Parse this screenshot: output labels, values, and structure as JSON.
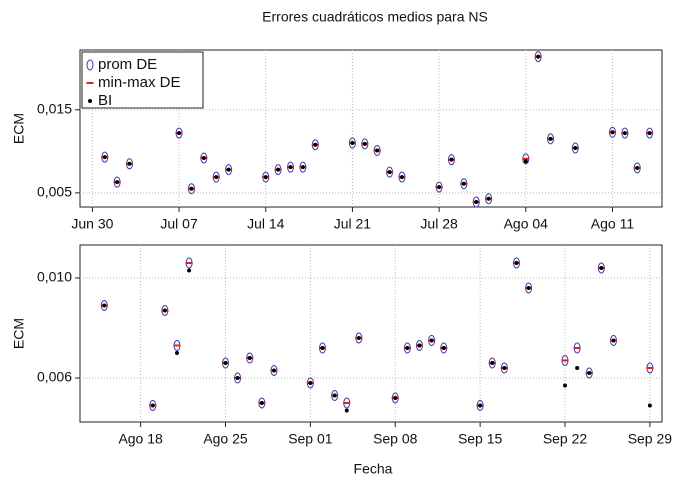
{
  "chart_data": [
    {
      "type": "scatter",
      "title": "Errores cuadráticos medios para NS",
      "y_label": "ECM",
      "x": [
        "07-01",
        "07-02",
        "07-03",
        "07-07",
        "07-08",
        "07-09",
        "07-10",
        "07-11",
        "07-14",
        "07-15",
        "07-16",
        "07-17",
        "07-18",
        "07-21",
        "07-22",
        "07-23",
        "07-24",
        "07-25",
        "07-28",
        "07-29",
        "07-30",
        "07-31",
        "08-01",
        "08-04",
        "08-05",
        "08-06",
        "08-08",
        "08-11",
        "08-12",
        "08-13",
        "08-14"
      ],
      "series": [
        {
          "name": "prom DE",
          "color": "#3b3bb0",
          "marker": "diamond",
          "values": [
            0.0093,
            0.0063,
            0.0085,
            0.0122,
            0.0055,
            0.0092,
            0.0069,
            0.0078,
            0.0069,
            0.0078,
            0.0081,
            0.0081,
            0.0108,
            0.011,
            0.0109,
            0.0101,
            0.0075,
            0.0069,
            0.0057,
            0.009,
            0.0061,
            0.0039,
            0.0043,
            0.0091,
            0.0214,
            0.0115,
            0.0104,
            0.0123,
            0.0122,
            0.008,
            0.0122
          ]
        },
        {
          "name": "min-max DE",
          "color": "#e02020",
          "marker": "dash",
          "values": [
            0.0093,
            0.0063,
            0.0085,
            0.0122,
            0.0055,
            0.0092,
            0.0069,
            0.0078,
            0.0069,
            0.0078,
            0.0081,
            0.0081,
            0.0108,
            0.011,
            0.0109,
            0.0101,
            0.0075,
            0.0069,
            0.0057,
            0.009,
            0.0061,
            0.0039,
            0.0043,
            0.0091,
            0.0214,
            0.0115,
            0.0104,
            0.0123,
            0.0122,
            0.008,
            0.0122
          ]
        },
        {
          "name": "BI",
          "color": "#000000",
          "marker": "dot",
          "values": [
            0.0093,
            0.0063,
            0.0085,
            0.0122,
            0.0055,
            0.0092,
            0.0069,
            0.0078,
            0.0069,
            0.0078,
            0.0081,
            0.0081,
            0.0108,
            0.011,
            0.0109,
            0.0101,
            0.0075,
            0.0069,
            0.0057,
            0.009,
            0.0061,
            0.0039,
            0.0043,
            0.0088,
            0.0214,
            0.0115,
            0.0104,
            0.0123,
            0.0122,
            0.008,
            0.0122
          ]
        }
      ],
      "xlim": [
        "06-29",
        "08-15"
      ],
      "xticks": [
        {
          "value": "06-30",
          "label": "Jun 30"
        },
        {
          "value": "07-07",
          "label": "Jul 07"
        },
        {
          "value": "07-14",
          "label": "Jul 14"
        },
        {
          "value": "07-21",
          "label": "Jul 21"
        },
        {
          "value": "07-28",
          "label": "Jul 28"
        },
        {
          "value": "08-04",
          "label": "Ago 04"
        },
        {
          "value": "08-11",
          "label": "Ago 11"
        }
      ],
      "ylim": [
        0.0033,
        0.0222
      ],
      "yticks": [
        {
          "value": 0.005,
          "label": "0,005"
        },
        {
          "value": 0.015,
          "label": "0,015"
        }
      ],
      "grid": true,
      "legend": "top-left"
    },
    {
      "type": "scatter",
      "y_label": "ECM",
      "x_label": "Fecha",
      "x": [
        "08-15",
        "08-19",
        "08-20",
        "08-21",
        "08-22",
        "08-25",
        "08-26",
        "08-27",
        "08-28",
        "08-29",
        "09-01",
        "09-02",
        "09-03",
        "09-04",
        "09-05",
        "09-08",
        "09-09",
        "09-10",
        "09-11",
        "09-12",
        "09-15",
        "09-16",
        "09-17",
        "09-18",
        "09-19",
        "09-22",
        "09-23",
        "09-24",
        "09-25",
        "09-26",
        "09-29"
      ],
      "series": [
        {
          "color": "#3b3bb0",
          "marker": "diamond",
          "values": [
            0.0089,
            0.0049,
            0.0087,
            0.0073,
            0.0106,
            0.0066,
            0.006,
            0.0068,
            0.005,
            0.0063,
            0.0058,
            0.0072,
            0.0053,
            0.005,
            0.0076,
            0.0052,
            0.0072,
            0.0073,
            0.0075,
            0.0072,
            0.0049,
            0.0066,
            0.0064,
            0.0106,
            0.0096,
            0.0067,
            0.0072,
            0.0062,
            0.0104,
            0.0075,
            0.0064
          ]
        },
        {
          "color": "#e02020",
          "marker": "dash",
          "values": [
            0.0089,
            0.0049,
            0.0087,
            0.0073,
            0.0106,
            0.0066,
            0.006,
            0.0068,
            0.005,
            0.0063,
            0.0058,
            0.0072,
            0.0053,
            0.005,
            0.0076,
            0.0052,
            0.0072,
            0.0073,
            0.0075,
            0.0072,
            0.0049,
            0.0066,
            0.0064,
            0.0106,
            0.0096,
            0.0067,
            0.0072,
            0.0062,
            0.0104,
            0.0075,
            0.0064
          ]
        },
        {
          "color": "#000000",
          "marker": "dot",
          "values": [
            0.0089,
            0.0049,
            0.0087,
            0.007,
            0.0103,
            0.0066,
            0.006,
            0.0068,
            0.005,
            0.0063,
            0.0058,
            0.0072,
            0.0053,
            0.0047,
            0.0076,
            0.0052,
            0.0072,
            0.0073,
            0.0075,
            0.0072,
            0.0049,
            0.0066,
            0.0064,
            0.0106,
            0.0096,
            0.0057,
            0.0064,
            0.0062,
            0.0104,
            0.0075,
            0.0049
          ]
        }
      ],
      "xlim": [
        "08-13",
        "09-30"
      ],
      "xticks": [
        {
          "value": "08-18",
          "label": "Ago 18"
        },
        {
          "value": "08-25",
          "label": "Ago 25"
        },
        {
          "value": "09-01",
          "label": "Sep 01"
        },
        {
          "value": "09-08",
          "label": "Sep 08"
        },
        {
          "value": "09-15",
          "label": "Sep 15"
        },
        {
          "value": "09-22",
          "label": "Sep 22"
        },
        {
          "value": "09-29",
          "label": "Sep 29"
        }
      ],
      "ylim": [
        0.00424,
        0.01132
      ],
      "yticks": [
        {
          "value": 0.006,
          "label": "0,006"
        },
        {
          "value": 0.01,
          "label": "0,010"
        }
      ],
      "grid": true
    }
  ]
}
